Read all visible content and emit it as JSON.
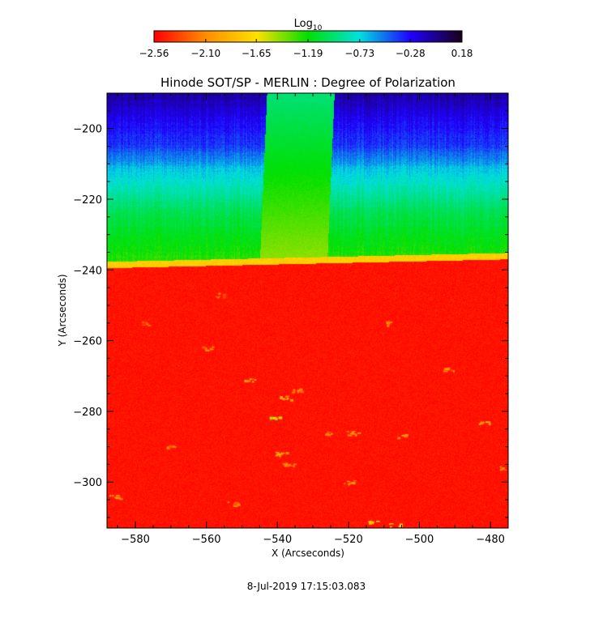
{
  "chart_data": {
    "type": "heatmap",
    "title": "Hinode SOT/SP - MERLIN : Degree of Polarization",
    "xlabel": "X (Arcseconds)",
    "ylabel": "Y (Arcseconds)",
    "footer": "8-Jul-2019 17:15:03.083",
    "xlim": [
      -588,
      -475
    ],
    "ylim": [
      -313,
      -190
    ],
    "x_ticks": [
      {
        "value": -580,
        "label": "−580"
      },
      {
        "value": -560,
        "label": "−560"
      },
      {
        "value": -540,
        "label": "−540"
      },
      {
        "value": -520,
        "label": "−520"
      },
      {
        "value": -500,
        "label": "−500"
      },
      {
        "value": -480,
        "label": "−480"
      }
    ],
    "y_ticks": [
      {
        "value": -200,
        "label": "−200"
      },
      {
        "value": -220,
        "label": "−220"
      },
      {
        "value": -240,
        "label": "−240"
      },
      {
        "value": -260,
        "label": "−260"
      },
      {
        "value": -280,
        "label": "−280"
      },
      {
        "value": -300,
        "label": "−300"
      }
    ],
    "colorbar": {
      "title_base": "Log",
      "title_subscript": "10",
      "range": [
        -2.56,
        0.18
      ],
      "colors": [
        "#ff0000",
        "#ff8c00",
        "#ffe000",
        "#00e000",
        "#00e0e0",
        "#2000ff",
        "#180018"
      ],
      "ticks": [
        {
          "value": -2.56,
          "label": "−2.56"
        },
        {
          "value": -2.1,
          "label": "−2.10"
        },
        {
          "value": -1.65,
          "label": "−1.65"
        },
        {
          "value": -1.19,
          "label": "−1.19"
        },
        {
          "value": -0.73,
          "label": "−0.73"
        },
        {
          "value": -0.28,
          "label": "−0.28"
        },
        {
          "value": 0.18,
          "label": "0.18"
        }
      ]
    },
    "field": {
      "limb_y_at_x_start": -238.5,
      "limb_y_at_x_end": -236.0,
      "limb_value": -1.75,
      "disk_value": -2.5,
      "offlimb_gradient": [
        {
          "y": -237,
          "value": -1.25
        },
        {
          "y": -225,
          "value": -1.05
        },
        {
          "y": -212,
          "value": -0.7
        },
        {
          "y": -205,
          "value": -0.4
        },
        {
          "y": -197,
          "value": -0.25
        },
        {
          "y": -190,
          "value": -0.08
        }
      ],
      "slit_column": {
        "x_left_at_top": -543,
        "x_left_at_limb": -545,
        "x_right_at_top": -524,
        "x_right_at_limb": -526,
        "value_top": -0.95,
        "value_bottom": -1.45
      },
      "bright_spots": [
        {
          "x": -577,
          "y": -255,
          "value": -2.2
        },
        {
          "x": -560,
          "y": -262,
          "value": -2.1
        },
        {
          "x": -548,
          "y": -271,
          "value": -2.0
        },
        {
          "x": -535,
          "y": -274,
          "value": -2.05
        },
        {
          "x": -538,
          "y": -276,
          "value": -1.95
        },
        {
          "x": -541,
          "y": -282,
          "value": -1.6
        },
        {
          "x": -526,
          "y": -286,
          "value": -2.0
        },
        {
          "x": -519,
          "y": -286,
          "value": -2.05
        },
        {
          "x": -539,
          "y": -292,
          "value": -2.0
        },
        {
          "x": -537,
          "y": -295,
          "value": -2.05
        },
        {
          "x": -520,
          "y": -300,
          "value": -2.1
        },
        {
          "x": -505,
          "y": -287,
          "value": -2.05
        },
        {
          "x": -482,
          "y": -283,
          "value": -2.0
        },
        {
          "x": -508,
          "y": -255,
          "value": -2.15
        },
        {
          "x": -476,
          "y": -296,
          "value": -2.05
        },
        {
          "x": -586,
          "y": -304,
          "value": -2.1
        },
        {
          "x": -513,
          "y": -311,
          "value": -1.8
        },
        {
          "x": -507,
          "y": -312,
          "value": -1.7
        },
        {
          "x": -556,
          "y": -247,
          "value": -2.2
        },
        {
          "x": -492,
          "y": -268,
          "value": -2.15
        },
        {
          "x": -570,
          "y": -290,
          "value": -2.2
        },
        {
          "x": -553,
          "y": -306,
          "value": -2.15
        }
      ]
    }
  }
}
